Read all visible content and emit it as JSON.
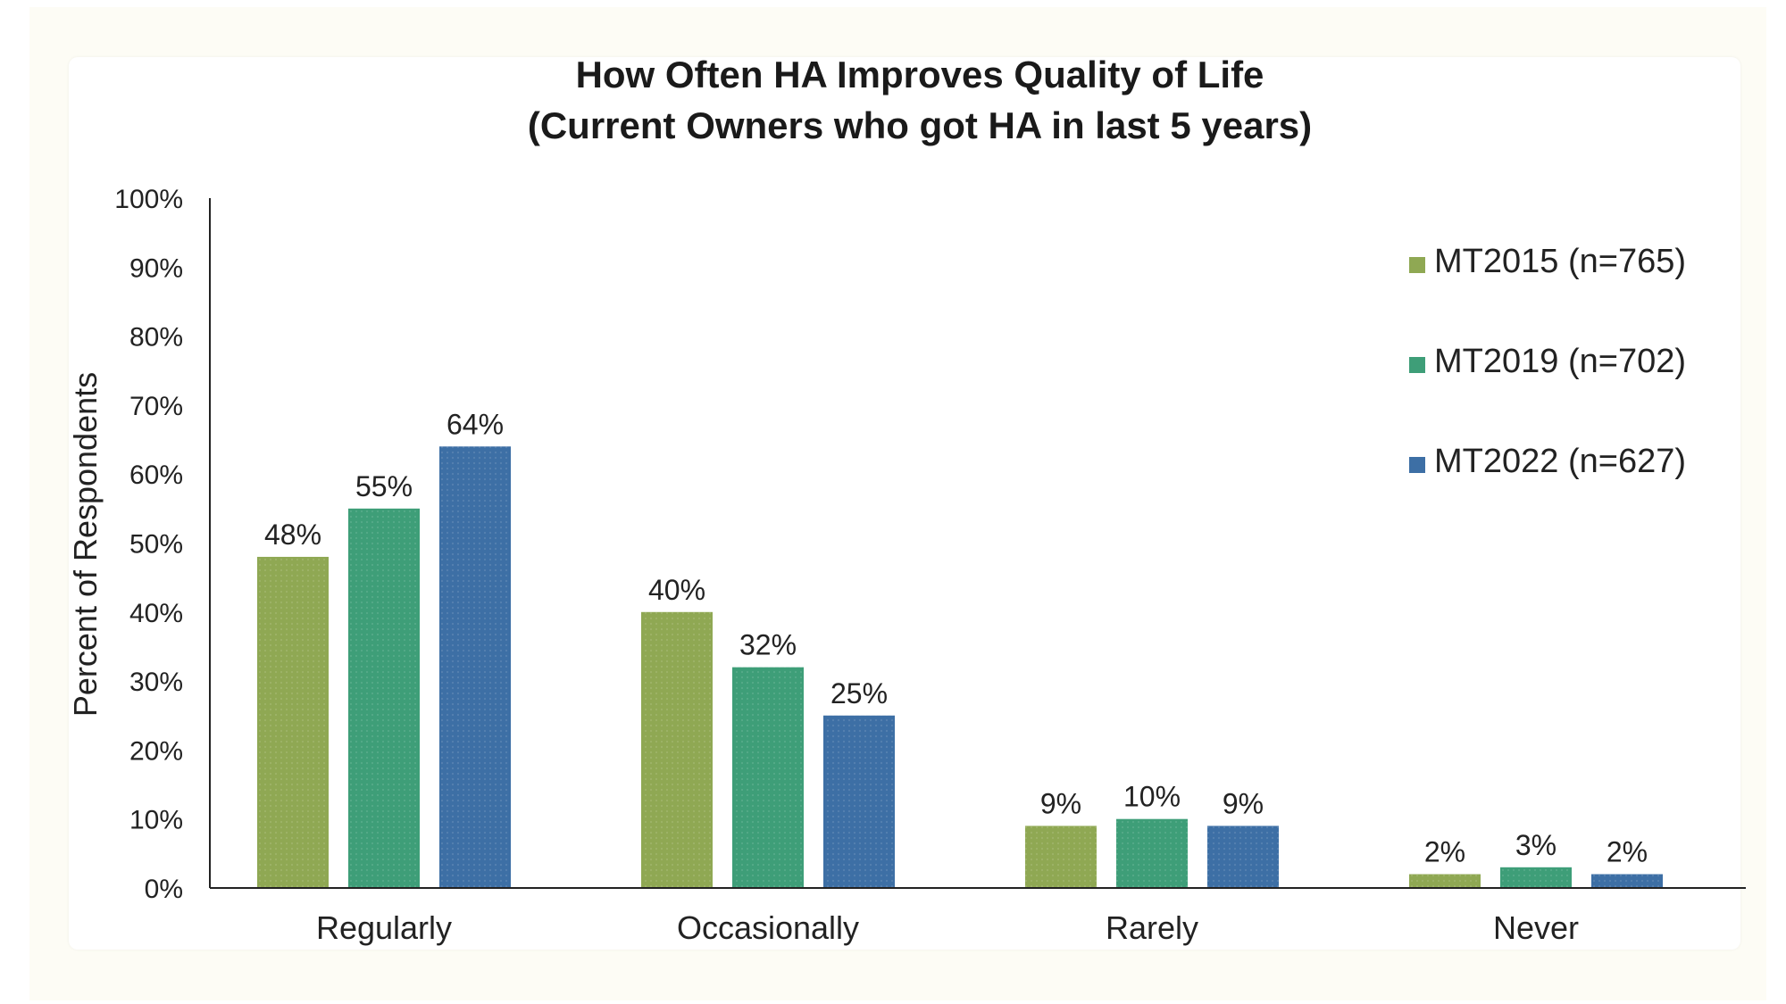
{
  "chart_data": {
    "type": "bar",
    "title": "How Often HA Improves Quality of Life",
    "subtitle": "(Current Owners who got HA in last 5 years)",
    "xlabel": "",
    "ylabel": "Percent of Respondents",
    "ylim": [
      0,
      100
    ],
    "y_ticks": [
      "0%",
      "10%",
      "20%",
      "30%",
      "40%",
      "50%",
      "60%",
      "70%",
      "80%",
      "90%",
      "100%"
    ],
    "categories": [
      "Regularly",
      "Occasionally",
      "Rarely",
      "Never"
    ],
    "series": [
      {
        "name": "MT2015 (n=765)",
        "color": "#8fa853",
        "values": [
          48,
          40,
          9,
          2
        ],
        "labels": [
          "48%",
          "40%",
          "9%",
          "2%"
        ]
      },
      {
        "name": "MT2019 (n=702)",
        "color": "#3e9e78",
        "values": [
          55,
          32,
          10,
          3
        ],
        "labels": [
          "55%",
          "32%",
          "10%",
          "3%"
        ]
      },
      {
        "name": "MT2022 (n=627)",
        "color": "#3d6fa5",
        "values": [
          64,
          25,
          9,
          2
        ],
        "labels": [
          "64%",
          "25%",
          "9%",
          "2%"
        ]
      }
    ],
    "grid": false,
    "legend_position": "right"
  }
}
